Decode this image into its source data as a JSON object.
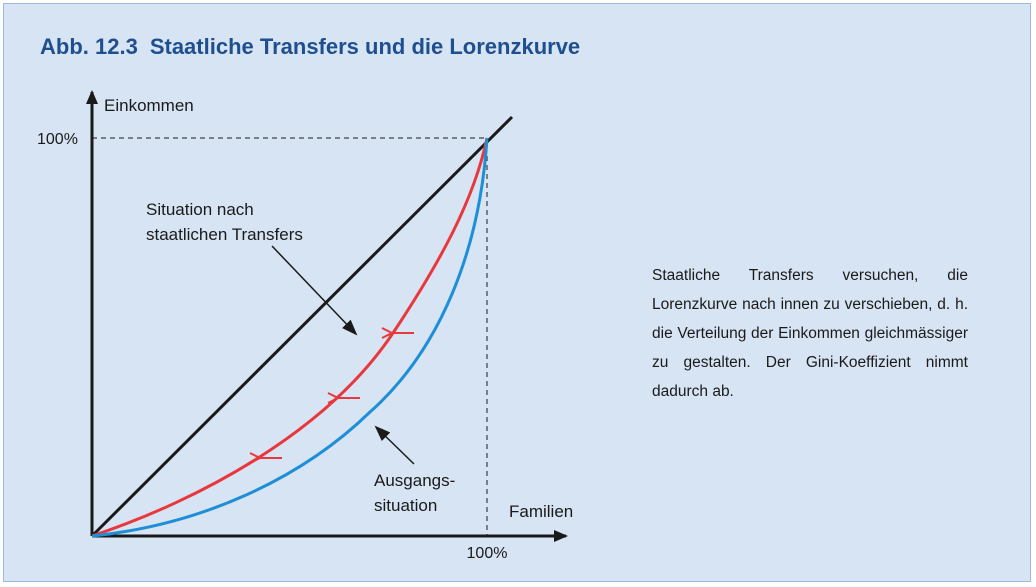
{
  "figure": {
    "number": "Abb. 12.3",
    "title": "Staatliche Transfers und die Lorenzkurve"
  },
  "axes": {
    "y_label": "Einkommen",
    "x_label": "Familien",
    "y_tick": "100%",
    "x_tick": "100%"
  },
  "annotations": {
    "after_transfers": [
      "Situation nach",
      "staatlichen Transfers"
    ],
    "initial": [
      "Ausgangs-",
      "situation"
    ]
  },
  "caption": "Staatliche Transfers versuchen, die Lorenzkurve nach innen zu verschieben, d. h. die Verteilung der Einkommen gleichmässiger zu gestalten. Der Gini-Koeffizient nimmt dadurch ab.",
  "colors": {
    "title": "#1f4f8e",
    "background": "#d7e4f3",
    "equality_line": "#1a1a1a",
    "curve_after_transfers": "#e8383d",
    "curve_initial": "#1e8fd6",
    "shift_arrows": "#e8383d"
  }
}
